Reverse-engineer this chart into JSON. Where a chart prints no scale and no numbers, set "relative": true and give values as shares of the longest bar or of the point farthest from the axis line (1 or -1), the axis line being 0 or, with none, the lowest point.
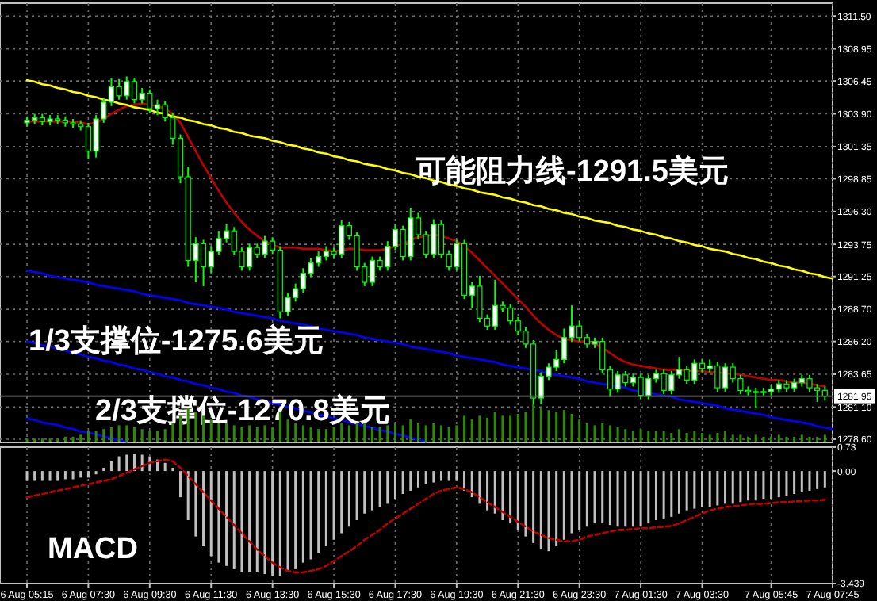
{
  "chart_data": [
    {
      "type": "candlestick",
      "categories": [
        null,
        null,
        null,
        null,
        null,
        null,
        null,
        null,
        null,
        null,
        null,
        null,
        null,
        null,
        null,
        null,
        null,
        null,
        null,
        null,
        null,
        null,
        null,
        null,
        null,
        null,
        null,
        null,
        null,
        null,
        null,
        null,
        null,
        null,
        null,
        null,
        null,
        null,
        null,
        null,
        null,
        null,
        null,
        null,
        null,
        null,
        null,
        null,
        null,
        null,
        null,
        null,
        null,
        null,
        null,
        null,
        null,
        null,
        null,
        null,
        null,
        null,
        null,
        null,
        null,
        null,
        null,
        null,
        null,
        null,
        null,
        null,
        null,
        null,
        null,
        null,
        null,
        null,
        null,
        null,
        null,
        null,
        null,
        null,
        null,
        null,
        null,
        null,
        null,
        null,
        null,
        null,
        null,
        null,
        null,
        null,
        null,
        null,
        null,
        null,
        null,
        null,
        null,
        null,
        null,
        null
      ],
      "ohlc": [
        [
          1303.2,
          1303.7,
          1302.9,
          1303.4
        ],
        [
          1303.4,
          1303.9,
          1303.1,
          1303.6
        ],
        [
          1303.6,
          1303.9,
          1303.0,
          1303.3
        ],
        [
          1303.3,
          1303.8,
          1303.0,
          1303.5
        ],
        [
          1303.5,
          1303.8,
          1303.1,
          1303.4
        ],
        [
          1303.4,
          1303.7,
          1302.9,
          1303.2
        ],
        [
          1303.2,
          1303.5,
          1302.8,
          1303.1
        ],
        [
          1303.1,
          1303.4,
          1302.6,
          1302.9
        ],
        [
          1302.9,
          1303.2,
          1300.4,
          1301.0
        ],
        [
          1301.0,
          1303.8,
          1300.5,
          1303.5
        ],
        [
          1303.5,
          1305.1,
          1303.2,
          1304.8
        ],
        [
          1304.8,
          1306.7,
          1304.5,
          1306.0
        ],
        [
          1306.0,
          1306.6,
          1305.0,
          1305.3
        ],
        [
          1305.3,
          1306.8,
          1305.0,
          1306.4
        ],
        [
          1306.4,
          1306.7,
          1304.7,
          1305.0
        ],
        [
          1305.0,
          1305.9,
          1304.7,
          1305.5
        ],
        [
          1305.5,
          1305.8,
          1304.0,
          1304.3
        ],
        [
          1304.3,
          1305.0,
          1303.8,
          1304.6
        ],
        [
          1304.6,
          1304.9,
          1303.3,
          1303.6
        ],
        [
          1303.6,
          1304.0,
          1301.5,
          1302.0
        ],
        [
          1302.0,
          1302.3,
          1298.5,
          1299.0
        ],
        [
          1299.0,
          1299.8,
          1292.0,
          1292.5
        ],
        [
          1292.5,
          1294.3,
          1290.8,
          1293.8
        ],
        [
          1293.8,
          1294.1,
          1290.5,
          1292.0
        ],
        [
          1292.0,
          1293.6,
          1291.5,
          1293.2
        ],
        [
          1293.2,
          1294.8,
          1292.9,
          1294.2
        ],
        [
          1294.2,
          1295.3,
          1293.9,
          1294.8
        ],
        [
          1294.8,
          1295.1,
          1292.9,
          1293.2
        ],
        [
          1293.2,
          1293.5,
          1291.7,
          1292.0
        ],
        [
          1292.0,
          1293.8,
          1291.7,
          1293.5
        ],
        [
          1293.5,
          1293.8,
          1292.7,
          1293.0
        ],
        [
          1293.0,
          1294.4,
          1292.7,
          1294.0
        ],
        [
          1294.0,
          1294.3,
          1293.0,
          1293.3
        ],
        [
          1293.3,
          1293.6,
          1288.0,
          1288.5
        ],
        [
          1288.5,
          1290.0,
          1288.2,
          1289.6
        ],
        [
          1289.6,
          1290.7,
          1289.3,
          1290.3
        ],
        [
          1290.3,
          1291.9,
          1290.0,
          1291.5
        ],
        [
          1291.5,
          1292.7,
          1291.2,
          1292.3
        ],
        [
          1292.3,
          1293.2,
          1292.0,
          1292.8
        ],
        [
          1292.8,
          1293.6,
          1292.5,
          1293.2
        ],
        [
          1293.2,
          1293.5,
          1292.7,
          1293.0
        ],
        [
          1293.0,
          1295.6,
          1292.7,
          1295.2
        ],
        [
          1295.2,
          1295.5,
          1294.1,
          1294.4
        ],
        [
          1294.4,
          1294.7,
          1291.7,
          1292.0
        ],
        [
          1292.0,
          1292.3,
          1290.5,
          1290.8
        ],
        [
          1290.8,
          1292.8,
          1290.5,
          1292.5
        ],
        [
          1292.5,
          1292.8,
          1291.7,
          1292.0
        ],
        [
          1292.0,
          1294.0,
          1291.7,
          1293.6
        ],
        [
          1293.6,
          1295.3,
          1293.3,
          1294.9
        ],
        [
          1294.9,
          1295.2,
          1292.5,
          1292.8
        ],
        [
          1292.8,
          1296.6,
          1292.5,
          1295.8
        ],
        [
          1295.8,
          1296.2,
          1294.2,
          1294.5
        ],
        [
          1294.5,
          1294.8,
          1292.7,
          1293.0
        ],
        [
          1293.0,
          1295.7,
          1292.7,
          1295.3
        ],
        [
          1295.3,
          1295.6,
          1292.7,
          1293.0
        ],
        [
          1293.0,
          1293.3,
          1291.7,
          1292.0
        ],
        [
          1292.0,
          1294.1,
          1291.7,
          1293.8
        ],
        [
          1293.8,
          1294.1,
          1289.5,
          1289.8
        ],
        [
          1289.8,
          1290.8,
          1288.8,
          1290.5
        ],
        [
          1290.5,
          1291.3,
          1287.7,
          1288.0
        ],
        [
          1288.0,
          1288.3,
          1287.1,
          1287.4
        ],
        [
          1287.4,
          1291.0,
          1287.1,
          1289.0
        ],
        [
          1289.0,
          1289.3,
          1288.5,
          1288.8
        ],
        [
          1288.8,
          1289.1,
          1287.5,
          1287.8
        ],
        [
          1287.8,
          1288.1,
          1286.7,
          1287.0
        ],
        [
          1287.0,
          1287.3,
          1285.7,
          1286.0
        ],
        [
          1286.0,
          1286.3,
          1281.3,
          1281.8
        ],
        [
          1281.8,
          1283.8,
          1281.3,
          1283.5
        ],
        [
          1283.5,
          1284.5,
          1283.2,
          1284.2
        ],
        [
          1284.2,
          1285.5,
          1283.9,
          1284.8
        ],
        [
          1284.8,
          1287.2,
          1284.5,
          1286.5
        ],
        [
          1286.5,
          1289.0,
          1286.2,
          1287.4
        ],
        [
          1287.4,
          1287.8,
          1286.2,
          1286.5
        ],
        [
          1286.5,
          1286.8,
          1285.7,
          1286.0
        ],
        [
          1286.0,
          1286.5,
          1285.7,
          1286.2
        ],
        [
          1286.2,
          1286.5,
          1283.7,
          1284.0
        ],
        [
          1284.0,
          1284.3,
          1281.9,
          1282.5
        ],
        [
          1282.5,
          1283.9,
          1282.2,
          1283.6
        ],
        [
          1283.6,
          1283.9,
          1282.7,
          1283.0
        ],
        [
          1283.0,
          1283.7,
          1282.7,
          1283.4
        ],
        [
          1283.4,
          1283.7,
          1281.7,
          1282.0
        ],
        [
          1282.0,
          1283.6,
          1281.7,
          1283.3
        ],
        [
          1283.3,
          1284.0,
          1283.0,
          1283.7
        ],
        [
          1283.7,
          1284.0,
          1282.1,
          1282.4
        ],
        [
          1282.4,
          1283.9,
          1282.1,
          1283.6
        ],
        [
          1283.6,
          1285.0,
          1283.3,
          1284.0
        ],
        [
          1284.0,
          1284.3,
          1282.9,
          1283.2
        ],
        [
          1283.2,
          1284.8,
          1282.9,
          1284.5
        ],
        [
          1284.5,
          1284.8,
          1283.8,
          1284.1
        ],
        [
          1284.1,
          1284.8,
          1283.8,
          1284.3
        ],
        [
          1284.3,
          1284.6,
          1282.3,
          1282.6
        ],
        [
          1282.6,
          1284.5,
          1282.3,
          1284.2
        ],
        [
          1284.2,
          1284.5,
          1283.0,
          1283.3
        ],
        [
          1283.3,
          1283.6,
          1282.1,
          1282.4
        ],
        [
          1282.4,
          1282.7,
          1282.0,
          1282.3
        ],
        [
          1282.3,
          1282.6,
          1281.0,
          1282.3
        ],
        [
          1282.3,
          1282.6,
          1282.0,
          1282.3
        ],
        [
          1282.3,
          1282.8,
          1282.0,
          1282.5
        ],
        [
          1282.5,
          1283.2,
          1282.2,
          1282.9
        ],
        [
          1282.9,
          1283.2,
          1282.3,
          1282.6
        ],
        [
          1282.6,
          1283.3,
          1282.3,
          1283.0
        ],
        [
          1283.0,
          1283.6,
          1282.7,
          1283.3
        ],
        [
          1283.3,
          1283.6,
          1282.3,
          1282.6
        ],
        [
          1282.6,
          1282.9,
          1281.5,
          1282.4
        ],
        [
          1282.4,
          1282.7,
          1281.6,
          1281.95
        ],
        null
      ],
      "series": [
        {
          "type": "line",
          "color": "#c00000",
          "values": [
            1303.3,
            1303.3,
            1303.3,
            1303.3,
            1303.3,
            1303.3,
            1303.3,
            1303.2,
            1303.1,
            1303.2,
            1303.5,
            1303.9,
            1304.2,
            1304.5,
            1304.6,
            1304.7,
            1304.6,
            1304.5,
            1304.3,
            1303.9,
            1303.2,
            1302.1,
            1301.0,
            1299.9,
            1298.9,
            1297.9,
            1297.0,
            1296.2,
            1295.5,
            1294.9,
            1294.4,
            1294.0,
            1293.7,
            1293.5,
            1293.5,
            1293.5,
            1293.4,
            1293.4,
            1293.4,
            1293.3,
            1293.2,
            1293.3,
            1293.4,
            1293.4,
            1293.3,
            1293.3,
            1293.3,
            1293.4,
            1293.6,
            1293.8,
            1294.1,
            1294.3,
            1294.4,
            1294.5,
            1294.4,
            1294.2,
            1294.0,
            1293.6,
            1293.1,
            1292.5,
            1291.9,
            1291.3,
            1290.7,
            1290.1,
            1289.5,
            1288.9,
            1288.2,
            1287.6,
            1287.1,
            1286.7,
            1286.4,
            1286.3,
            1286.2,
            1286.2,
            1286.0,
            1285.7,
            1285.3,
            1284.9,
            1284.6,
            1284.4,
            1284.3,
            1284.2,
            1284.1,
            1284.0,
            1284.0,
            1284.0,
            1283.9,
            1283.9,
            1283.9,
            1283.8,
            1283.8,
            1283.7,
            1283.7,
            1283.6,
            1283.5,
            1283.4,
            1283.3,
            1283.2,
            1283.2,
            1283.1,
            1283.0,
            1283.0,
            1282.9,
            1282.8,
            1282.7,
            null
          ]
        },
        {
          "type": "line",
          "color": "#ffff00",
          "values": [
            1306.5,
            1306.4,
            1306.2,
            1306.1,
            1305.9,
            1305.8,
            1305.6,
            1305.5,
            1305.3,
            1305.2,
            1305.0,
            1304.9,
            1304.7,
            1304.6,
            1304.4,
            1304.3,
            1304.2,
            1304.0,
            1303.9,
            1303.7,
            1303.6,
            1303.4,
            1303.3,
            1303.1,
            1303.0,
            1302.8,
            1302.7,
            1302.5,
            1302.4,
            1302.2,
            1302.1,
            1302.0,
            1301.8,
            1301.7,
            1301.5,
            1301.4,
            1301.2,
            1301.1,
            1300.9,
            1300.8,
            1300.6,
            1300.5,
            1300.3,
            1300.2,
            1300.0,
            1299.9,
            1299.8,
            1299.6,
            1299.5,
            1299.3,
            1299.2,
            1299.0,
            1298.9,
            1298.7,
            1298.6,
            1298.4,
            1298.3,
            1298.1,
            1298.0,
            1297.8,
            1297.7,
            1297.6,
            1297.4,
            1297.3,
            1297.1,
            1297.0,
            1296.8,
            1296.7,
            1296.5,
            1296.4,
            1296.2,
            1296.1,
            1295.9,
            1295.8,
            1295.6,
            1295.5,
            1295.4,
            1295.2,
            1295.1,
            1294.9,
            1294.8,
            1294.6,
            1294.5,
            1294.3,
            1294.2,
            1294.0,
            1293.9,
            1293.7,
            1293.6,
            1293.4,
            1293.3,
            1293.2,
            1293.0,
            1292.9,
            1292.7,
            1292.6,
            1292.4,
            1292.3,
            1292.1,
            1292.0,
            1291.8,
            1291.7,
            1291.5,
            1291.4,
            1291.2,
            1291.1
          ]
        },
        {
          "type": "line",
          "color": "#0000ff",
          "values": [
            1291.7,
            1291.6,
            1291.5,
            1291.3,
            1291.2,
            1291.1,
            1291.0,
            1290.9,
            1290.8,
            1290.6,
            1290.5,
            1290.4,
            1290.3,
            1290.2,
            1290.1,
            1289.9,
            1289.8,
            1289.7,
            1289.6,
            1289.5,
            1289.4,
            1289.2,
            1289.1,
            1289.0,
            1288.9,
            1288.8,
            1288.7,
            1288.5,
            1288.4,
            1288.3,
            1288.2,
            1288.1,
            1288.0,
            1287.8,
            1287.7,
            1287.6,
            1287.5,
            1287.4,
            1287.2,
            1287.1,
            1287.0,
            1286.9,
            1286.8,
            1286.7,
            1286.5,
            1286.4,
            1286.3,
            1286.2,
            1286.1,
            1286.0,
            1285.8,
            1285.7,
            1285.6,
            1285.5,
            1285.4,
            1285.3,
            1285.1,
            1285.0,
            1284.9,
            1284.8,
            1284.7,
            1284.6,
            1284.4,
            1284.3,
            1284.2,
            1284.1,
            1284.0,
            1283.9,
            1283.7,
            1283.6,
            1283.5,
            1283.4,
            1283.3,
            1283.1,
            1283.0,
            1282.9,
            1282.8,
            1282.7,
            1282.6,
            1282.4,
            1282.3,
            1282.2,
            1282.1,
            1282.0,
            1281.9,
            1281.7,
            1281.6,
            1281.5,
            1281.4,
            1281.3,
            1281.2,
            1281.0,
            1280.9,
            1280.8,
            1280.7,
            1280.6,
            1280.5,
            1280.3,
            1280.2,
            1280.1,
            1280.0,
            1279.9,
            1279.8,
            1279.6,
            1279.5,
            1279.4
          ]
        },
        {
          "type": "line",
          "color": "#0000ff",
          "values": [
            1286.2,
            1286.1,
            1285.9,
            1285.8,
            1285.6,
            1285.5,
            1285.3,
            1285.2,
            1285.0,
            1284.9,
            1284.7,
            1284.6,
            1284.4,
            1284.3,
            1284.1,
            1284.0,
            1283.8,
            1283.7,
            1283.5,
            1283.4,
            1283.2,
            1283.1,
            1282.9,
            1282.8,
            1282.6,
            1282.5,
            1282.3,
            1282.2,
            1282.0,
            1281.9,
            1281.7,
            1281.6,
            1281.4,
            1281.3,
            1281.1,
            1281.0,
            1280.8,
            1280.7,
            1280.5,
            1280.4,
            1280.2,
            1280.1,
            1279.9,
            1279.8,
            1279.6,
            1279.5,
            1279.3,
            1279.2,
            1279.0,
            1278.9,
            1278.7,
            1278.6,
            1278.4,
            null,
            null,
            null,
            null,
            null,
            null,
            null,
            null,
            null,
            null,
            null,
            null,
            null,
            null,
            null,
            null,
            null,
            null,
            null,
            null,
            null,
            null,
            null,
            null,
            null,
            null,
            null,
            null,
            null,
            null,
            null,
            null,
            null,
            null,
            null,
            null,
            null,
            null,
            null,
            null,
            null,
            null,
            null,
            null,
            null,
            null,
            null,
            null,
            null,
            null,
            null,
            null,
            null
          ]
        },
        {
          "type": "line",
          "color": "#0000ff",
          "values": [
            1280.2,
            1280.1,
            1279.9,
            1279.8,
            1279.7,
            1279.5,
            1279.4,
            1279.2,
            1279.1,
            1279.0,
            1278.8,
            1278.7,
            1278.5,
            1278.4,
            null,
            null,
            null,
            null,
            null,
            null,
            null,
            null,
            null,
            null,
            null,
            null,
            null,
            null,
            null,
            null,
            null,
            null,
            null,
            null,
            null,
            null,
            null,
            null,
            null,
            null,
            null,
            null,
            null,
            null,
            null,
            null,
            null,
            null,
            null,
            null,
            null,
            null,
            null,
            null,
            null,
            null,
            null,
            null,
            null,
            null,
            null,
            null,
            null,
            null,
            null,
            null,
            null,
            null,
            null,
            null,
            null,
            null,
            null,
            null,
            null,
            null,
            null,
            null,
            null,
            null,
            null,
            null,
            null,
            null,
            null,
            null,
            null,
            null,
            null,
            null,
            null,
            null,
            null,
            null,
            null,
            null,
            null,
            null,
            null,
            null,
            null,
            null,
            null,
            null,
            null,
            null
          ]
        }
      ],
      "ylim": [
        1278.35,
        1312.5
      ],
      "yticks": [
        {
          "value": 1311.5,
          "label": "1311.50"
        },
        1308.95,
        1306.45,
        {
          "value": 1303.9,
          "label": "1303.90"
        },
        1301.35,
        1298.85,
        {
          "value": 1296.3,
          "label": "1296.30"
        },
        1293.75,
        1291.25,
        {
          "value": 1288.7,
          "label": "1288.70"
        },
        {
          "value": 1286.2,
          "label": "1286.20"
        },
        1283.65,
        {
          "value": 1281.1,
          "label": "1281.10"
        },
        {
          "value": 1278.6,
          "label": "1278.60"
        }
      ],
      "grid": true,
      "tick_labels": "y",
      "ref_lines": [
        {
          "axis": "y",
          "value": 1281.95,
          "label": "1281.95",
          "color": "#808080"
        }
      ],
      "annotations": [
        "可能阻力线-1291.5美元",
        "1/3支撑位-1275.6美元",
        "2/3支撑位-1270.8美元"
      ]
    },
    {
      "type": "bar",
      "relative": true,
      "tick_labels": false,
      "categories": [
        null,
        null,
        null,
        null,
        null,
        null,
        null,
        null,
        null,
        null,
        null,
        null,
        null,
        null,
        null,
        null,
        null,
        null,
        null,
        null,
        null,
        null,
        null,
        null,
        null,
        null,
        null,
        null,
        null,
        null,
        null,
        null,
        null,
        null,
        null,
        null,
        null,
        null,
        null,
        null,
        null,
        null,
        null,
        null,
        null,
        null,
        null,
        null,
        null,
        null,
        null,
        null,
        null,
        null,
        null,
        null,
        null,
        null,
        null,
        null,
        null,
        null,
        null,
        null,
        null,
        null,
        null,
        null,
        null,
        null,
        null,
        null,
        null,
        null,
        null,
        null,
        null,
        null,
        null,
        null,
        null,
        null,
        null,
        null,
        null,
        null,
        null,
        null,
        null,
        null,
        null,
        null,
        null,
        null,
        null,
        null,
        null,
        null,
        null,
        null,
        null,
        null,
        null,
        null,
        null,
        null
      ],
      "color": "#2e8b00",
      "values": [
        0.1,
        0.1,
        0.1,
        0.1,
        0.1,
        0.15,
        0.15,
        0.2,
        0.3,
        0.3,
        0.35,
        0.4,
        0.45,
        0.45,
        0.4,
        0.35,
        0.3,
        0.3,
        0.35,
        0.5,
        0.7,
        0.9,
        0.8,
        0.7,
        0.6,
        0.5,
        0.5,
        0.45,
        0.4,
        0.45,
        0.4,
        0.45,
        0.4,
        0.8,
        0.6,
        0.5,
        0.45,
        0.4,
        0.35,
        0.35,
        0.4,
        0.5,
        0.45,
        0.5,
        0.5,
        0.4,
        0.4,
        0.45,
        0.5,
        0.45,
        0.6,
        0.5,
        0.45,
        0.5,
        0.45,
        0.4,
        0.45,
        0.7,
        0.6,
        0.7,
        0.65,
        0.8,
        0.7,
        0.7,
        0.75,
        0.8,
        1.0,
        0.9,
        0.85,
        0.8,
        0.85,
        0.75,
        0.6,
        0.5,
        0.45,
        0.5,
        0.45,
        0.4,
        0.35,
        0.3,
        0.35,
        0.3,
        0.3,
        0.3,
        0.25,
        0.35,
        0.25,
        0.3,
        0.25,
        0.2,
        0.25,
        0.3,
        0.2,
        0.2,
        0.15,
        0.2,
        0.15,
        0.15,
        0.2,
        0.15,
        0.15,
        0.2,
        0.15,
        0.15,
        0.2,
        null
      ]
    },
    {
      "type": "bar",
      "categories": [
        "6 Aug 05:15",
        null,
        null,
        null,
        null,
        null,
        null,
        null,
        "6 Aug 07:30",
        null,
        null,
        null,
        null,
        null,
        null,
        null,
        "6 Aug 09:30",
        null,
        null,
        null,
        null,
        null,
        null,
        null,
        "6 Aug 11:30",
        null,
        null,
        null,
        null,
        null,
        null,
        null,
        "6 Aug 13:30",
        null,
        null,
        null,
        null,
        null,
        null,
        null,
        "6 Aug 15:30",
        null,
        null,
        null,
        null,
        null,
        null,
        null,
        "6 Aug 17:30",
        null,
        null,
        null,
        null,
        null,
        null,
        null,
        "6 Aug 19:30",
        null,
        null,
        null,
        null,
        null,
        null,
        null,
        "6 Aug 21:30",
        null,
        null,
        null,
        null,
        null,
        null,
        null,
        "6 Aug 23:30",
        null,
        null,
        null,
        null,
        null,
        null,
        null,
        "7 Aug 01:30",
        null,
        null,
        null,
        null,
        null,
        null,
        null,
        "7 Aug 03:30",
        null,
        null,
        null,
        null,
        null,
        null,
        null,
        null,
        "7 Aug 05:45",
        null,
        null,
        null,
        null,
        null,
        null,
        null,
        "7 Aug 07:45"
      ],
      "series": [
        {
          "type": "bar",
          "color": "#c0c0c0",
          "values": [
            -0.3,
            -0.3,
            -0.3,
            -0.3,
            -0.3,
            -0.25,
            -0.25,
            -0.2,
            -0.2,
            -0.1,
            0.1,
            0.3,
            0.45,
            0.5,
            0.53,
            0.5,
            0.45,
            0.35,
            0.25,
            0.1,
            -0.8,
            -1.5,
            -2.0,
            -2.3,
            -2.6,
            -2.8,
            -2.9,
            -3.0,
            -3.1,
            -3.1,
            -3.1,
            -3.15,
            -3.2,
            -3.2,
            -3.1,
            -3.0,
            -2.8,
            -2.7,
            -2.5,
            -2.3,
            -2.1,
            -1.9,
            -1.7,
            -1.5,
            -1.3,
            -1.2,
            -1.1,
            -1.0,
            -0.85,
            -0.7,
            -0.6,
            -0.5,
            -0.4,
            -0.35,
            -0.3,
            -0.3,
            -0.3,
            -0.6,
            -0.8,
            -1.0,
            -1.2,
            -1.3,
            -1.5,
            -1.6,
            -1.8,
            -2.0,
            -2.2,
            -2.4,
            -2.45,
            -2.3,
            -2.1,
            -1.9,
            -1.8,
            -1.7,
            -1.6,
            -1.6,
            -1.65,
            -1.7,
            -1.7,
            -1.7,
            -1.7,
            -1.6,
            -1.5,
            -1.45,
            -1.4,
            -1.3,
            -1.2,
            -1.15,
            -1.1,
            -1.1,
            -1.05,
            -1.0,
            -1.0,
            -0.95,
            -0.9,
            -0.9,
            -0.85,
            -0.85,
            -0.8,
            -0.75,
            -0.7,
            -0.65,
            -0.6,
            -0.55,
            -0.5,
            null
          ]
        },
        {
          "type": "line",
          "color": "#c00000",
          "line_style": "dashed",
          "values": [
            -0.8,
            -0.75,
            -0.7,
            -0.65,
            -0.6,
            -0.55,
            -0.5,
            -0.45,
            -0.4,
            -0.35,
            -0.3,
            -0.25,
            -0.15,
            -0.05,
            0.05,
            0.15,
            0.25,
            0.3,
            0.35,
            0.3,
            0.1,
            -0.15,
            -0.4,
            -0.65,
            -0.9,
            -1.15,
            -1.4,
            -1.65,
            -1.9,
            -2.15,
            -2.4,
            -2.6,
            -2.8,
            -2.95,
            -3.05,
            -3.1,
            -3.1,
            -3.05,
            -3.0,
            -2.9,
            -2.75,
            -2.6,
            -2.45,
            -2.3,
            -2.1,
            -1.95,
            -1.8,
            -1.6,
            -1.45,
            -1.3,
            -1.15,
            -1.0,
            -0.85,
            -0.7,
            -0.6,
            -0.55,
            -0.5,
            -0.55,
            -0.65,
            -0.8,
            -0.95,
            -1.1,
            -1.25,
            -1.4,
            -1.55,
            -1.7,
            -1.85,
            -1.95,
            -2.05,
            -2.1,
            -2.15,
            -2.15,
            -2.1,
            -2.0,
            -1.95,
            -1.9,
            -1.85,
            -1.8,
            -1.8,
            -1.77,
            -1.75,
            -1.75,
            -1.72,
            -1.7,
            -1.68,
            -1.6,
            -1.5,
            -1.4,
            -1.3,
            -1.2,
            -1.15,
            -1.1,
            -1.08,
            -1.05,
            -1.02,
            -1.0,
            -1.0,
            -0.98,
            -0.95,
            -0.95,
            -0.93,
            -0.92,
            -0.9,
            -0.9,
            -0.88,
            null
          ]
        }
      ],
      "ylim": [
        -3.439,
        0.73
      ],
      "yticks": [
        0.73,
        {
          "value": 0,
          "label": "0.00"
        },
        -3.439
      ],
      "grid": "x",
      "annotations": [
        "MACD"
      ]
    }
  ]
}
